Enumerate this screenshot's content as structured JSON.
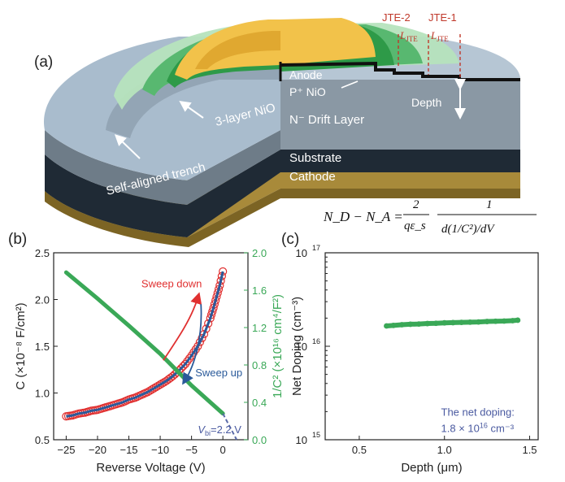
{
  "panel_a": {
    "label": "(a)",
    "layers": {
      "anode": "Anode",
      "p_nio": "P⁺ NiO",
      "drift": "N⁻ Drift Layer",
      "substrate": "Substrate",
      "cathode": "Cathode"
    },
    "annotations": {
      "three_layer": "3-layer NiO",
      "trench": "Self-aligned trench",
      "depth": "Depth",
      "jte2": "JTE-2",
      "jte1": "JTE-1",
      "ljte_base": "L",
      "ljte_sub": "JTE"
    },
    "colors": {
      "anode": "#f2c24a",
      "nio_light": "#9ed7a8",
      "nio_dark": "#2e9a48",
      "drift": "#8a98a4",
      "substrate": "#1f2a35",
      "cathode": "#a88a3a",
      "trench_surface": "#a9bccd",
      "jte_dash": "#c0392b"
    }
  },
  "equation": {
    "lhs": "N_D − N_A = ",
    "minus": "−",
    "num1": "2",
    "den1": "qε_s",
    "num2": "1",
    "den2": "d(1/C²)/dV"
  },
  "panel_b": {
    "label": "(b)",
    "chart_data": {
      "type": "scatter",
      "xlabel": "Reverse Voltage (V)",
      "ylabel_left": "C (×10⁻⁸ F/cm²)",
      "ylabel_right": "1/C² (×10¹⁶ cm⁴/F²)",
      "xlim": [
        -27,
        4
      ],
      "ylim_left": [
        0.5,
        2.5
      ],
      "ylim_right": [
        0.0,
        2.0
      ],
      "x_ticks": [
        -25,
        -20,
        -15,
        -10,
        -5,
        0
      ],
      "x_ticklabels": [
        "−25",
        "−20",
        "−15",
        "−10",
        "−5",
        "0"
      ],
      "y_left_ticks": [
        0.5,
        1.0,
        1.5,
        2.0,
        2.5
      ],
      "y_left_ticklabels": [
        "0.5",
        "1.0",
        "1.5",
        "2.0",
        "2.5"
      ],
      "y_right_ticks": [
        0.0,
        0.4,
        0.8,
        1.2,
        1.6,
        2.0
      ],
      "y_right_ticklabels": [
        "0.0",
        "0.4",
        "0.8",
        "1.2",
        "1.6",
        "2.0"
      ],
      "vbi_label": "V",
      "vbi_sub": "bi",
      "vbi_value": "=2.2 V",
      "sweep_down": "Sweep down",
      "sweep_up": "Sweep up",
      "series": [
        {
          "axis": "left",
          "style": "open-circle",
          "x": [
            -25,
            -24,
            -23,
            -22,
            -21,
            -20,
            -19,
            -18,
            -17,
            -16,
            -15,
            -14,
            -13,
            -12,
            -11,
            -10,
            -9,
            -8,
            -7,
            -6,
            -5,
            -4,
            -3,
            -2,
            -1.5,
            -1,
            -0.5,
            0
          ],
          "y": [
            0.75,
            0.76,
            0.78,
            0.79,
            0.81,
            0.82,
            0.84,
            0.86,
            0.88,
            0.9,
            0.93,
            0.95,
            0.98,
            1.01,
            1.05,
            1.09,
            1.13,
            1.18,
            1.24,
            1.31,
            1.4,
            1.5,
            1.63,
            1.8,
            1.91,
            2.03,
            2.15,
            2.3
          ]
        },
        {
          "axis": "left",
          "style": "line",
          "x": [
            -25,
            -24,
            -23,
            -22,
            -21,
            -20,
            -19,
            -18,
            -17,
            -16,
            -15,
            -14,
            -13,
            -12,
            -11,
            -10,
            -9,
            -8,
            -7,
            -6,
            -5,
            -4,
            -3,
            -2,
            -1.5,
            -1,
            -0.5,
            0
          ],
          "y": [
            0.75,
            0.76,
            0.78,
            0.79,
            0.81,
            0.82,
            0.84,
            0.86,
            0.88,
            0.9,
            0.93,
            0.95,
            0.98,
            1.01,
            1.05,
            1.09,
            1.13,
            1.18,
            1.24,
            1.31,
            1.4,
            1.5,
            1.63,
            1.8,
            1.91,
            2.03,
            2.15,
            2.3
          ]
        },
        {
          "axis": "right",
          "style": "thick-line",
          "x": [
            -25,
            -20,
            -15,
            -10,
            -5,
            0
          ],
          "y": [
            1.79,
            1.51,
            1.22,
            0.92,
            0.58,
            0.28
          ]
        },
        {
          "axis": "right",
          "style": "dashed-fit",
          "x": [
            0,
            2.2
          ],
          "y": [
            0.28,
            0.0
          ]
        }
      ]
    }
  },
  "panel_c": {
    "label": "(c)",
    "chart_data": {
      "type": "scatter",
      "xlabel": "Depth (μm)",
      "ylabel": "Net Doping (cm⁻³)",
      "xlim": [
        0.3,
        1.55
      ],
      "yscale": "log",
      "ylim": [
        1000000000000000.0,
        1e+17
      ],
      "x_ticks": [
        0.5,
        1.0,
        1.5
      ],
      "x_ticklabels": [
        "0.5",
        "1.0",
        "1.5"
      ],
      "y_ticks_exp": [
        15,
        16,
        17
      ],
      "y_tick_base": "10",
      "annotation_line1": "The net doping:",
      "annotation_line2_a": "1.8 × 10",
      "annotation_line2_sup": "16",
      "annotation_line2_b": " cm⁻³",
      "series": [
        {
          "x": [
            0.66,
            0.7,
            0.75,
            0.8,
            0.85,
            0.9,
            0.95,
            1.0,
            1.05,
            1.1,
            1.15,
            1.2,
            1.25,
            1.3,
            1.35,
            1.4,
            1.43
          ],
          "y": [
            1.65e+16,
            1.67e+16,
            1.7e+16,
            1.72e+16,
            1.73e+16,
            1.75e+16,
            1.76e+16,
            1.78e+16,
            1.79e+16,
            1.8e+16,
            1.81e+16,
            1.82e+16,
            1.84e+16,
            1.85e+16,
            1.86e+16,
            1.88e+16,
            1.9e+16
          ]
        }
      ]
    }
  }
}
